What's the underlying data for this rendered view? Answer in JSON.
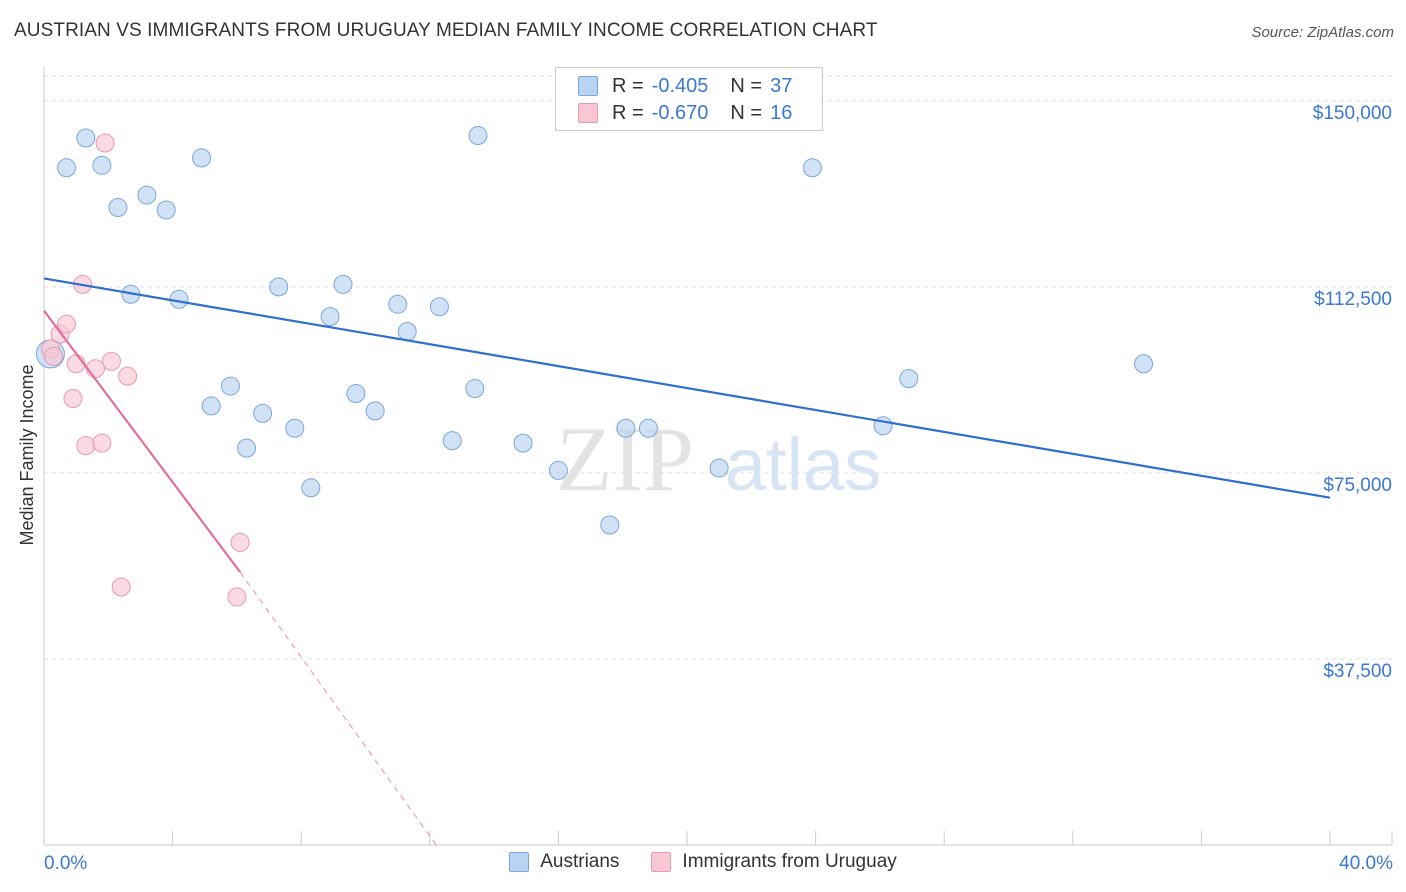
{
  "title": "AUSTRIAN VS IMMIGRANTS FROM URUGUAY MEDIAN FAMILY INCOME CORRELATION CHART",
  "source": "Source: ZipAtlas.com",
  "watermark": {
    "zip": "ZIP",
    "atlas": "atlas"
  },
  "legend": {
    "rows": [
      {
        "r_label": "R =",
        "r_value": "-0.405",
        "n_label": "N =",
        "n_value": "37",
        "color": "#b9d3f2",
        "border": "#7aa6dc"
      },
      {
        "r_label": "R =",
        "r_value": "-0.670",
        "n_label": "N =",
        "n_value": "16",
        "color": "#f9c6d4",
        "border": "#e899b0"
      }
    ]
  },
  "bottom_legend": [
    {
      "label": "Austrians",
      "color": "#b9d3f2",
      "border": "#7aa6dc"
    },
    {
      "label": "Immigrants from Uruguay",
      "color": "#f9c6d4",
      "border": "#e899b0"
    }
  ],
  "chart_data": {
    "type": "scatter",
    "title": "AUSTRIAN VS IMMIGRANTS FROM URUGUAY MEDIAN FAMILY INCOME CORRELATION CHART",
    "xlabel": "",
    "ylabel": "Median Family Income",
    "xlim": [
      0,
      40
    ],
    "ylim": [
      0,
      155000
    ],
    "x_tick_labels": [
      "0.0%",
      "40.0%"
    ],
    "y_ticks": [
      37500,
      75000,
      112500,
      150000
    ],
    "y_tick_labels": [
      "$37,500",
      "$75,000",
      "$112,500",
      "$150,000"
    ],
    "grid": true,
    "series": [
      {
        "name": "Austrians",
        "color": "#b9d3f2",
        "stroke": "#7aa6dc",
        "r": -0.405,
        "n": 37,
        "points": [
          [
            0.2,
            99000
          ],
          [
            0.7,
            136500
          ],
          [
            1.3,
            142500
          ],
          [
            1.8,
            137000
          ],
          [
            2.3,
            128500
          ],
          [
            2.7,
            111000
          ],
          [
            3.2,
            131000
          ],
          [
            3.8,
            128000
          ],
          [
            4.2,
            110000
          ],
          [
            4.9,
            138500
          ],
          [
            5.2,
            88500
          ],
          [
            5.8,
            92500
          ],
          [
            6.3,
            80000
          ],
          [
            6.8,
            87000
          ],
          [
            7.3,
            112500
          ],
          [
            7.8,
            84000
          ],
          [
            8.3,
            72000
          ],
          [
            8.9,
            106500
          ],
          [
            9.3,
            113000
          ],
          [
            9.7,
            91000
          ],
          [
            10.3,
            87500
          ],
          [
            11.0,
            109000
          ],
          [
            11.3,
            103500
          ],
          [
            12.3,
            108500
          ],
          [
            12.7,
            81500
          ],
          [
            13.4,
            92000
          ],
          [
            13.5,
            143000
          ],
          [
            14.9,
            81000
          ],
          [
            16.0,
            75500
          ],
          [
            17.6,
            64500
          ],
          [
            18.1,
            84000
          ],
          [
            18.8,
            84000
          ],
          [
            21.0,
            76000
          ],
          [
            23.9,
            136500
          ],
          [
            26.1,
            84500
          ],
          [
            26.9,
            94000
          ],
          [
            34.2,
            97000
          ]
        ],
        "trendline": {
          "x": [
            0,
            40
          ],
          "y": [
            114200,
            70000
          ]
        }
      },
      {
        "name": "Immigrants from Uruguay",
        "color": "#f9c6d4",
        "stroke": "#e899b0",
        "r": -0.67,
        "n": 16,
        "points": [
          [
            0.2,
            100000
          ],
          [
            0.3,
            98500
          ],
          [
            0.5,
            103000
          ],
          [
            0.7,
            105000
          ],
          [
            0.9,
            90000
          ],
          [
            1.0,
            97000
          ],
          [
            1.2,
            113000
          ],
          [
            1.3,
            80500
          ],
          [
            1.6,
            96000
          ],
          [
            1.8,
            81000
          ],
          [
            1.9,
            141500
          ],
          [
            2.1,
            97500
          ],
          [
            2.4,
            52000
          ],
          [
            2.6,
            94500
          ],
          [
            6.0,
            50000
          ],
          [
            6.1,
            61000
          ]
        ],
        "trendline": {
          "x": [
            0,
            6.1
          ],
          "y": [
            107700,
            55000
          ],
          "dashed_to": {
            "x": 12.2,
            "y": 0
          }
        }
      }
    ]
  }
}
